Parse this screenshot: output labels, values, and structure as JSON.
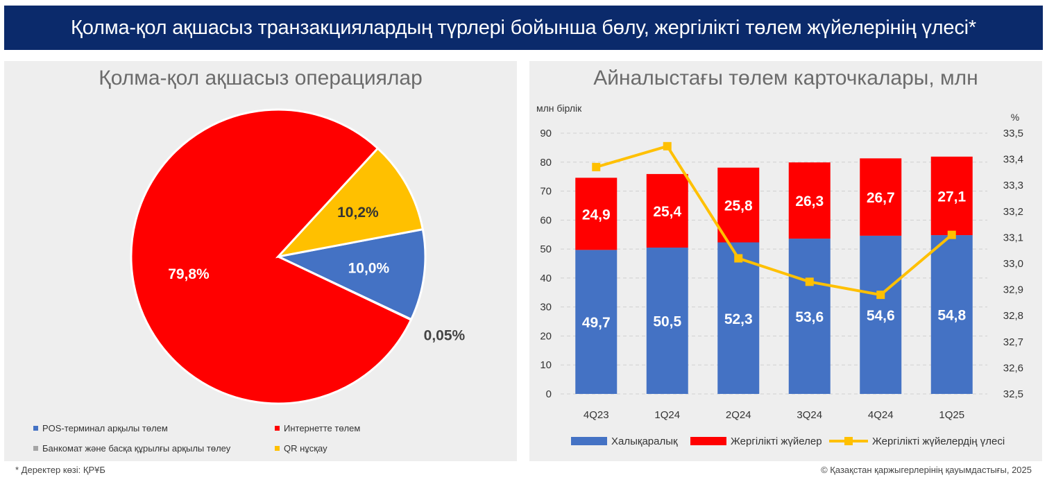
{
  "header": {
    "title": "Қолма-қол ақшасыз транзакциялардың түрлері бойынша бөлу, жергілікті төлем жүйелерінің үлесі*"
  },
  "footer": {
    "source": "* Деректер көзі: ҚРҰБ",
    "copyright": "© Қазақстан қаржыгерлерінің қауымдастығы, 2025"
  },
  "chart_data": [
    {
      "type": "pie",
      "title": "Қолма-қол ақшасыз операциялар",
      "slices": [
        {
          "label": "POS-терминал арқылы төлем",
          "value": 10.0,
          "display": "10,0%",
          "color": "#4472c4"
        },
        {
          "label": "Банкомат және басқа құрылғы арқылы төлеу",
          "value": 0.05,
          "display": "0,05%",
          "color": "#a5a5a5"
        },
        {
          "label": "Интернетте төлем",
          "value": 79.8,
          "display": "79,8%",
          "color": "#ff0000"
        },
        {
          "label": "QR нұсқау",
          "value": 10.2,
          "display": "10,2%",
          "color": "#ffc000"
        }
      ],
      "legend_position": "bottom"
    },
    {
      "type": "bar",
      "stacked": true,
      "title": "Айналыстағы төлем карточкалары, млн",
      "categories": [
        "4Q23",
        "1Q24",
        "2Q24",
        "3Q24",
        "4Q24",
        "1Q25"
      ],
      "ylabel": "млн бірлік",
      "y2label": "%",
      "ylim": [
        0,
        90
      ],
      "yticks": [
        "0",
        "10",
        "20",
        "30",
        "40",
        "50",
        "60",
        "70",
        "80",
        "90"
      ],
      "y2lim": [
        32.5,
        33.5
      ],
      "y2ticks": [
        "32,5",
        "32,6",
        "32,7",
        "32,8",
        "32,9",
        "33,0",
        "33,1",
        "33,2",
        "33,3",
        "33,4",
        "33,5"
      ],
      "grid": true,
      "legend_position": "bottom",
      "series": [
        {
          "name": "Халықаралық",
          "type": "bar",
          "color": "#4472c4",
          "axis": "left",
          "values": [
            49.7,
            50.5,
            52.3,
            53.6,
            54.6,
            54.8
          ],
          "labels": [
            "49,7",
            "50,5",
            "52,3",
            "53,6",
            "54,6",
            "54,8"
          ]
        },
        {
          "name": "Жергілікті жүйелер",
          "type": "bar",
          "color": "#ff0000",
          "axis": "left",
          "values": [
            24.9,
            25.4,
            25.8,
            26.3,
            26.7,
            27.1
          ],
          "labels": [
            "24,9",
            "25,4",
            "25,8",
            "26,3",
            "26,7",
            "27,1"
          ]
        },
        {
          "name": "Жергілікті жүйелердің үлесі",
          "type": "line",
          "color": "#ffc000",
          "axis": "right",
          "values": [
            33.37,
            33.45,
            33.02,
            32.93,
            32.88,
            33.11
          ]
        }
      ]
    }
  ]
}
